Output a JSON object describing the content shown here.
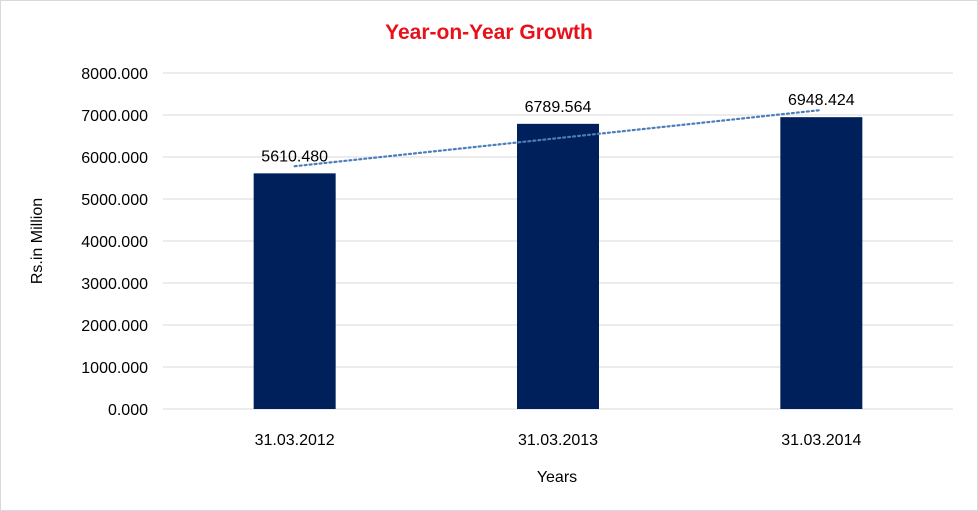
{
  "chart_data": {
    "type": "bar",
    "title": "Year-on-Year Growth",
    "xlabel": "Years",
    "ylabel": "Rs.in Million",
    "categories": [
      "31.03.2012",
      "31.03.2013",
      "31.03.2014"
    ],
    "values": [
      5610.48,
      6789.564,
      6948.424
    ],
    "data_labels": [
      "5610.480",
      "6789.564",
      "6948.424"
    ],
    "y_ticks": [
      "0.000",
      "1000.000",
      "2000.000",
      "3000.000",
      "4000.000",
      "5000.000",
      "6000.000",
      "7000.000",
      "8000.000"
    ],
    "ylim": [
      0,
      8000
    ],
    "grid": true,
    "trendline": {
      "type": "linear",
      "style": "dotted"
    },
    "colors": {
      "bar": "#00205b",
      "title": "#e8111a",
      "grid": "#d9d9d9",
      "trendline": "#4a7ebb"
    }
  }
}
